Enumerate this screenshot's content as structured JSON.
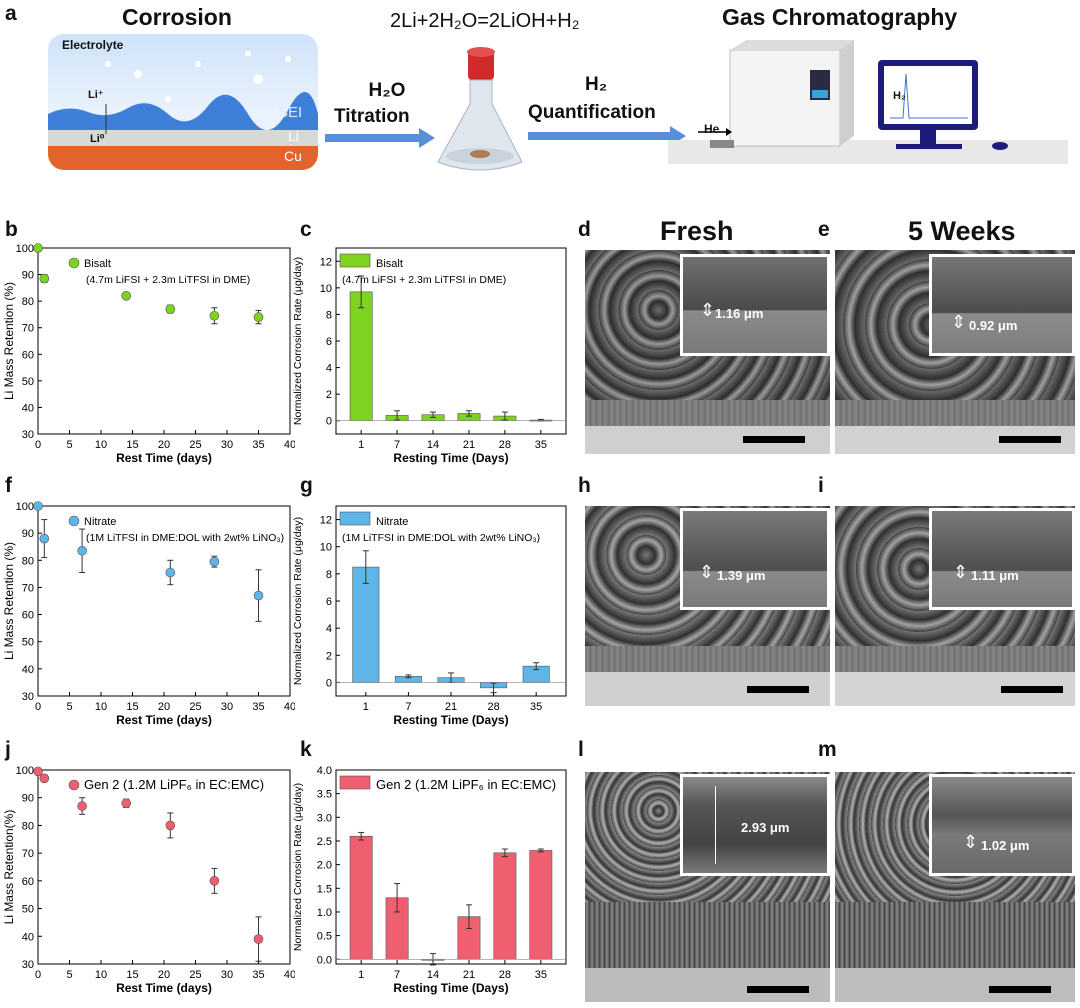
{
  "panel_labels": {
    "a": "a",
    "b": "b",
    "c": "c",
    "d": "d",
    "e": "e",
    "f": "f",
    "g": "g",
    "h": "h",
    "i": "i",
    "j": "j",
    "k": "k",
    "l": "l",
    "m": "m"
  },
  "schematic": {
    "corrosion_title": "Corrosion",
    "electrolyte": "Electrolyte",
    "li_plus": "Li⁺",
    "li0": "Li⁰",
    "sei": "SEI",
    "li": "Li",
    "cu": "Cu",
    "reaction": "2Li+2H₂O=2LiOH+H₂",
    "h2o": "H₂O",
    "titration": "Titration",
    "h2": "H₂",
    "quantification": "Quantification",
    "gc_title": "Gas Chromatography",
    "he": "He",
    "screen_h2": "H₂"
  },
  "sem": {
    "fresh": "Fresh",
    "five_weeks": "5 Weeks",
    "d_thickness": "1.16 μm",
    "e_thickness": "0.92 μm",
    "h_thickness": "1.39 μm",
    "i_thickness": "1.11 μm",
    "l_thickness": "2.93 μm",
    "m_thickness": "1.02 μm"
  },
  "chart_data": [
    {
      "id": "b",
      "type": "scatter",
      "legend_name": "Bisalt",
      "legend_detail": "(4.7m LiFSI + 2.3m LiTFSI in DME)",
      "color": "#7ed321",
      "xlabel": "Rest Time (days)",
      "ylabel": "Li Mass Retention (%)",
      "xlim": [
        0,
        40
      ],
      "ylim": [
        30,
        100
      ],
      "xticks": [
        0,
        5,
        10,
        15,
        20,
        25,
        30,
        35,
        40
      ],
      "yticks": [
        30,
        40,
        50,
        60,
        70,
        80,
        90,
        100
      ],
      "points": [
        {
          "x": 0,
          "y": 100,
          "err": 0.5
        },
        {
          "x": 1,
          "y": 88.5,
          "err": 1.5
        },
        {
          "x": 14,
          "y": 82,
          "err": 1.2
        },
        {
          "x": 21,
          "y": 77,
          "err": 1.5
        },
        {
          "x": 28,
          "y": 74.5,
          "err": 3
        },
        {
          "x": 35,
          "y": 74,
          "err": 2.5
        }
      ]
    },
    {
      "id": "c",
      "type": "bar",
      "legend_name": "Bisalt",
      "legend_detail": "(4.7m LiFSI + 2.3m LiTFSI in DME)",
      "color": "#7ed321",
      "xlabel": "Resting Time (Days)",
      "ylabel": "Normalized Corrosion Rate (μg/day)",
      "ylim": [
        -1,
        13
      ],
      "yticks": [
        0,
        2,
        4,
        6,
        8,
        10,
        12
      ],
      "categories": [
        "1",
        "7",
        "14",
        "21",
        "28",
        "35"
      ],
      "values": [
        9.7,
        0.4,
        0.45,
        0.55,
        0.35,
        0.05
      ],
      "errors": [
        1.2,
        0.35,
        0.2,
        0.2,
        0.3,
        0.05
      ]
    },
    {
      "id": "f",
      "type": "scatter",
      "legend_name": "Nitrate",
      "legend_detail": "(1M LiTFSI in DME:DOL with 2wt% LiNO₃)",
      "color": "#5fb4e8",
      "xlabel": "Rest Time (days)",
      "ylabel": "Li Mass Retention (%)",
      "xlim": [
        0,
        40
      ],
      "ylim": [
        30,
        100
      ],
      "xticks": [
        0,
        5,
        10,
        15,
        20,
        25,
        30,
        35,
        40
      ],
      "yticks": [
        30,
        40,
        50,
        60,
        70,
        80,
        90,
        100
      ],
      "points": [
        {
          "x": 0,
          "y": 100,
          "err": 0.5
        },
        {
          "x": 1,
          "y": 88,
          "err": 7
        },
        {
          "x": 7,
          "y": 83.5,
          "err": 8
        },
        {
          "x": 21,
          "y": 75.5,
          "err": 4.5
        },
        {
          "x": 28,
          "y": 79.5,
          "err": 2
        },
        {
          "x": 35,
          "y": 67,
          "err": 9.5
        }
      ]
    },
    {
      "id": "g",
      "type": "bar",
      "legend_name": "Nitrate",
      "legend_detail": "(1M LiTFSI in DME:DOL with 2wt% LiNO₃)",
      "color": "#5fb4e8",
      "xlabel": "Resting Time (Days)",
      "ylabel": "Normalized Corrosion Rate (μg/day)",
      "ylim": [
        -1,
        13
      ],
      "yticks": [
        0,
        2,
        4,
        6,
        8,
        10,
        12
      ],
      "categories": [
        "1",
        "7",
        "21",
        "28",
        "35"
      ],
      "values": [
        8.5,
        0.45,
        0.35,
        -0.4,
        1.2
      ],
      "errors": [
        1.2,
        0.1,
        0.35,
        0.35,
        0.25
      ]
    },
    {
      "id": "j",
      "type": "scatter",
      "legend_name": "Gen 2 (1.2M LiPF₆ in EC:EMC)",
      "legend_detail": "",
      "color": "#ef5f70",
      "xlabel": "Rest Time (days)",
      "ylabel": "Li Mass Retention(%)",
      "xlim": [
        0,
        40
      ],
      "ylim": [
        30,
        100
      ],
      "xticks": [
        0,
        5,
        10,
        15,
        20,
        25,
        30,
        35,
        40
      ],
      "yticks": [
        30,
        40,
        50,
        60,
        70,
        80,
        90,
        100
      ],
      "points": [
        {
          "x": 0,
          "y": 99.5,
          "err": 0.5
        },
        {
          "x": 1,
          "y": 97,
          "err": 1
        },
        {
          "x": 7,
          "y": 87,
          "err": 3
        },
        {
          "x": 14,
          "y": 88,
          "err": 1.5
        },
        {
          "x": 21,
          "y": 80,
          "err": 4.5
        },
        {
          "x": 28,
          "y": 60,
          "err": 4.5
        },
        {
          "x": 35,
          "y": 39,
          "err": 8
        }
      ]
    },
    {
      "id": "k",
      "type": "bar",
      "legend_name": "Gen 2 (1.2M LiPF₆ in EC:EMC)",
      "legend_detail": "",
      "color": "#ef5f70",
      "xlabel": "Resting Time (Days)",
      "ylabel": "Normalized Corrosion Rate (μg/day)",
      "ylim": [
        -0.1,
        4
      ],
      "yticks": [
        0,
        0.5,
        1,
        1.5,
        2,
        2.5,
        3,
        3.5,
        4
      ],
      "ytick_labels": [
        "0.0",
        "0.5",
        "1.0",
        "1.5",
        "2.0",
        "2.5",
        "3.0",
        "3.5",
        "4.0"
      ],
      "categories": [
        "1",
        "7",
        "14",
        "21",
        "28",
        "35"
      ],
      "values": [
        2.6,
        1.3,
        0.0,
        0.9,
        2.25,
        2.3
      ],
      "errors": [
        0.08,
        0.3,
        0.12,
        0.25,
        0.08,
        0.03
      ]
    }
  ]
}
